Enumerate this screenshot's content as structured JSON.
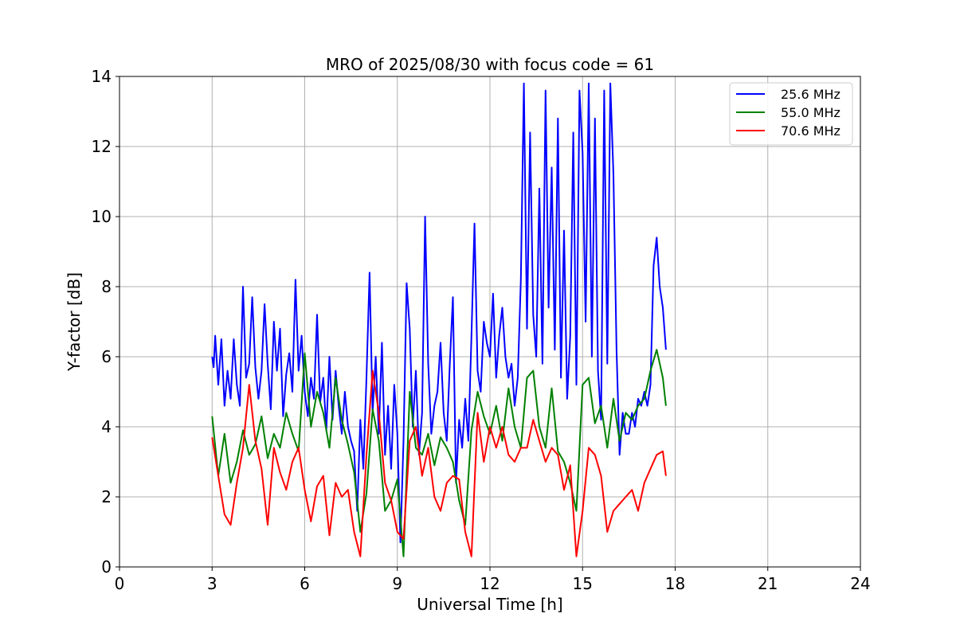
{
  "chart_data": {
    "type": "line",
    "title": "MRO of 2025/08/30 with focus code = 61",
    "xlabel": "Universal Time [h]",
    "ylabel": "Y-factor [dB]",
    "xlim": [
      0,
      24
    ],
    "ylim": [
      0,
      14
    ],
    "xticks": [
      0,
      3,
      6,
      9,
      12,
      15,
      18,
      21,
      24
    ],
    "yticks": [
      0,
      2,
      4,
      6,
      8,
      10,
      12,
      14
    ],
    "grid": true,
    "legend_position": "top-right",
    "series": [
      {
        "name": "25.6 MHz",
        "color": "#0000ff",
        "x": [
          3.0,
          3.05,
          3.1,
          3.2,
          3.3,
          3.4,
          3.5,
          3.6,
          3.7,
          3.8,
          3.9,
          4.0,
          4.1,
          4.2,
          4.3,
          4.4,
          4.5,
          4.6,
          4.7,
          4.8,
          4.9,
          5.0,
          5.1,
          5.2,
          5.3,
          5.4,
          5.5,
          5.6,
          5.7,
          5.8,
          5.9,
          6.0,
          6.1,
          6.2,
          6.3,
          6.4,
          6.5,
          6.6,
          6.7,
          6.8,
          6.9,
          7.0,
          7.1,
          7.2,
          7.3,
          7.4,
          7.5,
          7.6,
          7.7,
          7.8,
          7.9,
          8.0,
          8.1,
          8.2,
          8.3,
          8.4,
          8.5,
          8.6,
          8.7,
          8.8,
          8.9,
          9.0,
          9.1,
          9.2,
          9.3,
          9.4,
          9.5,
          9.6,
          9.7,
          9.8,
          9.9,
          10.0,
          10.1,
          10.2,
          10.3,
          10.4,
          10.5,
          10.6,
          10.7,
          10.8,
          10.9,
          11.0,
          11.1,
          11.2,
          11.3,
          11.4,
          11.5,
          11.6,
          11.7,
          11.8,
          11.9,
          12.0,
          12.1,
          12.2,
          12.3,
          12.4,
          12.5,
          12.6,
          12.7,
          12.8,
          12.9,
          13.0,
          13.1,
          13.2,
          13.3,
          13.4,
          13.5,
          13.6,
          13.7,
          13.8,
          13.9,
          14.0,
          14.1,
          14.2,
          14.3,
          14.4,
          14.5,
          14.6,
          14.7,
          14.8,
          14.9,
          15.0,
          15.1,
          15.2,
          15.3,
          15.4,
          15.5,
          15.6,
          15.7,
          15.8,
          15.9,
          16.0,
          16.1,
          16.2,
          16.3,
          16.4,
          16.5,
          16.6,
          16.7,
          16.8,
          16.9,
          17.0,
          17.1,
          17.2,
          17.3,
          17.4,
          17.5,
          17.6,
          17.7
        ],
        "values": [
          6.0,
          5.7,
          6.6,
          5.2,
          6.5,
          4.6,
          5.6,
          4.8,
          6.5,
          5.2,
          4.6,
          8.0,
          5.4,
          5.8,
          7.7,
          5.7,
          4.8,
          5.6,
          7.5,
          5.8,
          4.5,
          7.0,
          5.6,
          6.8,
          4.3,
          5.5,
          6.1,
          5.0,
          8.2,
          5.6,
          6.6,
          5.0,
          4.3,
          5.4,
          4.8,
          7.2,
          4.7,
          5.4,
          3.9,
          6.0,
          4.2,
          5.6,
          4.6,
          3.8,
          5.0,
          4.0,
          3.6,
          3.3,
          1.6,
          4.2,
          2.8,
          5.4,
          8.4,
          4.4,
          6.0,
          3.8,
          6.4,
          3.2,
          4.6,
          2.8,
          5.2,
          3.8,
          0.7,
          3.6,
          8.1,
          6.8,
          4.0,
          5.6,
          3.2,
          4.4,
          10.0,
          5.8,
          3.8,
          4.6,
          5.0,
          6.4,
          4.4,
          3.6,
          5.8,
          7.7,
          2.4,
          4.2,
          3.4,
          4.8,
          3.6,
          6.6,
          9.8,
          5.6,
          5.0,
          7.0,
          6.4,
          6.0,
          7.8,
          5.4,
          6.6,
          7.4,
          6.0,
          5.4,
          5.8,
          4.6,
          5.4,
          8.2,
          13.8,
          6.8,
          12.4,
          7.2,
          6.0,
          10.8,
          5.8,
          13.6,
          7.4,
          11.4,
          6.2,
          12.8,
          5.4,
          9.6,
          4.8,
          6.6,
          12.4,
          5.2,
          13.6,
          11.8,
          7.0,
          13.8,
          6.0,
          12.8,
          5.6,
          4.2,
          13.6,
          5.8,
          13.8,
          11.2,
          6.2,
          3.2,
          4.4,
          3.8,
          3.8,
          4.4,
          4.0,
          4.8,
          4.6,
          5.0,
          4.6,
          5.2,
          8.6,
          9.4,
          8.0,
          7.4,
          6.2
        ]
      },
      {
        "name": "55.0 MHz",
        "color": "#008000",
        "x": [
          3.0,
          3.2,
          3.4,
          3.6,
          3.8,
          4.0,
          4.2,
          4.4,
          4.6,
          4.8,
          5.0,
          5.2,
          5.4,
          5.6,
          5.8,
          6.0,
          6.2,
          6.4,
          6.6,
          6.8,
          7.0,
          7.2,
          7.4,
          7.6,
          7.8,
          8.0,
          8.2,
          8.4,
          8.6,
          8.8,
          9.0,
          9.2,
          9.4,
          9.6,
          9.8,
          10.0,
          10.2,
          10.4,
          10.6,
          10.8,
          11.0,
          11.2,
          11.4,
          11.6,
          11.8,
          12.0,
          12.2,
          12.4,
          12.6,
          12.8,
          13.0,
          13.2,
          13.4,
          13.6,
          13.8,
          14.0,
          14.2,
          14.4,
          14.6,
          14.8,
          15.0,
          15.2,
          15.4,
          15.6,
          15.8,
          16.0,
          16.2,
          16.4,
          16.6,
          16.8,
          17.0,
          17.2,
          17.4,
          17.6,
          17.7
        ],
        "values": [
          4.3,
          2.6,
          3.8,
          2.4,
          3.0,
          3.9,
          3.2,
          3.5,
          4.3,
          3.1,
          3.8,
          3.4,
          4.4,
          3.8,
          3.3,
          6.1,
          4.0,
          5.0,
          4.4,
          3.4,
          5.4,
          4.2,
          3.5,
          2.7,
          1.0,
          2.1,
          4.5,
          3.6,
          1.6,
          1.9,
          2.5,
          0.3,
          5.0,
          3.4,
          3.2,
          3.8,
          2.9,
          3.7,
          3.4,
          3.0,
          1.9,
          1.2,
          3.9,
          5.0,
          4.3,
          3.8,
          4.6,
          3.6,
          5.1,
          4.0,
          3.4,
          5.4,
          5.6,
          4.0,
          3.4,
          5.1,
          3.3,
          3.0,
          2.4,
          1.6,
          5.2,
          5.4,
          4.1,
          4.6,
          3.4,
          4.8,
          3.6,
          4.4,
          4.2,
          4.6,
          4.8,
          5.6,
          6.2,
          5.4,
          4.6
        ]
      },
      {
        "name": "70.6 MHz",
        "color": "#ff0000",
        "x": [
          3.0,
          3.2,
          3.4,
          3.6,
          3.8,
          4.0,
          4.2,
          4.4,
          4.6,
          4.8,
          5.0,
          5.2,
          5.4,
          5.6,
          5.8,
          6.0,
          6.2,
          6.4,
          6.6,
          6.8,
          7.0,
          7.2,
          7.4,
          7.6,
          7.8,
          8.0,
          8.2,
          8.4,
          8.6,
          8.8,
          9.0,
          9.2,
          9.4,
          9.6,
          9.8,
          10.0,
          10.2,
          10.4,
          10.6,
          10.8,
          11.0,
          11.2,
          11.4,
          11.6,
          11.8,
          12.0,
          12.2,
          12.4,
          12.6,
          12.8,
          13.0,
          13.2,
          13.4,
          13.6,
          13.8,
          14.0,
          14.2,
          14.4,
          14.6,
          14.8,
          15.0,
          15.2,
          15.4,
          15.6,
          15.8,
          16.0,
          16.2,
          16.4,
          16.6,
          16.8,
          17.0,
          17.2,
          17.4,
          17.6,
          17.7
        ],
        "values": [
          3.7,
          2.6,
          1.5,
          1.2,
          2.4,
          3.4,
          5.2,
          3.6,
          2.8,
          1.2,
          3.4,
          2.7,
          2.2,
          3.0,
          3.4,
          2.2,
          1.3,
          2.3,
          2.6,
          0.9,
          2.4,
          2.0,
          2.2,
          1.0,
          0.3,
          3.2,
          5.6,
          4.4,
          2.4,
          1.9,
          1.0,
          0.8,
          3.6,
          4.0,
          2.6,
          3.4,
          2.0,
          1.6,
          2.4,
          2.6,
          2.5,
          1.0,
          0.3,
          4.4,
          3.0,
          4.0,
          3.4,
          4.0,
          3.2,
          3.0,
          3.4,
          3.4,
          4.2,
          3.6,
          3.0,
          3.4,
          3.2,
          2.2,
          2.9,
          0.3,
          1.6,
          3.4,
          3.2,
          2.6,
          1.0,
          1.6,
          1.8,
          2.0,
          2.2,
          1.6,
          2.4,
          2.8,
          3.2,
          3.3,
          2.6
        ]
      }
    ]
  }
}
